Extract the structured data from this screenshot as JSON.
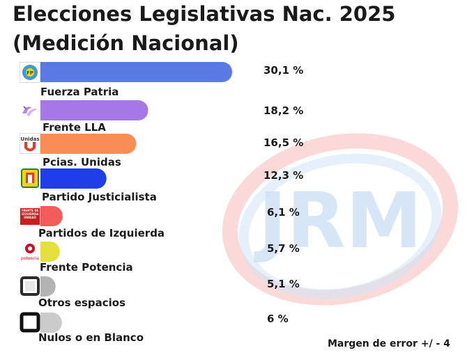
{
  "header": {
    "title_line1": "Elecciones Legislativas Nac. 2025",
    "title_line2": "(Medición Nacional)"
  },
  "watermark": {
    "text": "JRM"
  },
  "logos": {
    "fuerza_patria": "FP",
    "frente_lla": "",
    "pcias_unidas": "Unidas",
    "partidos_izquierda": "FRENTE DE IZQUIERDA UNIDAD",
    "frente_potencia": "potencia"
  },
  "footer": {
    "margin_note": "Margen de error  +/ -  4"
  },
  "chart_data": {
    "type": "bar",
    "orientation": "horizontal",
    "title": "Elecciones Legislativas Nac. 2025 (Medición Nacional)",
    "xlim": [
      0,
      32
    ],
    "categories": [
      "Fuerza Patria",
      "Frente LLA",
      "Pcias. Unidas",
      "Partido Justicialista",
      "Partidos de Izquierda",
      "Frente Potencia",
      "Otros espacios",
      "Nulos o en Blanco"
    ],
    "values": [
      30.1,
      18.2,
      16.5,
      12.3,
      6.1,
      5.7,
      5.1,
      6
    ],
    "value_labels": [
      "30,1 %",
      "18,2 %",
      "16,5 %",
      "12,3 %",
      "6,1 %",
      "5,7 %",
      "5,1 %",
      "6 %"
    ],
    "colors": [
      "#5a79e3",
      "#a678e6",
      "#fa8c55",
      "#1f3de8",
      "#f45c5c",
      "#e5e040",
      "#b3b3b3",
      "#cbcbcb"
    ],
    "logo_icons": [
      "fuerza-patria-logo-icon",
      "frente-lla-logo-icon",
      "pcias-unidas-logo-icon",
      "partido-justicialista-logo-icon",
      "partidos-de-izquierda-logo-icon",
      "frente-potencia-logo-icon",
      "otros-espacios-square-icon",
      "nulos-blanco-square-icon"
    ]
  }
}
